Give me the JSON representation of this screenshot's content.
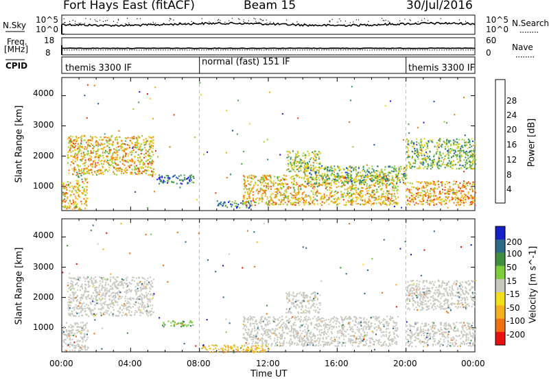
{
  "header": {
    "station": "Fort Hays East (fitACF)",
    "beam": "Beam 15",
    "date": "30/Jul/2016"
  },
  "strip": {
    "nsky_label": "N.Sky",
    "nsky_top": "10^5",
    "nsky_bottom": "10^0",
    "nsearch_label": "N.Search",
    "nsearch_top": "10^5",
    "nsearch_bottom": "10^0",
    "freq_label": "Freq.",
    "freq_unit": "[MHz]",
    "freq_top": "18",
    "freq_bottom": "8",
    "nave_label": "Nave",
    "nave_top": "60",
    "nave_bottom": "0",
    "cpid_label": "CPID",
    "cpid_segments": [
      {
        "label": "themis 3300 IF",
        "start_hour": 0,
        "end_hour": 8
      },
      {
        "label": "normal (fast) 151 IF",
        "start_hour": 8,
        "end_hour": 20
      },
      {
        "label": "themis 3300 IF",
        "start_hour": 20,
        "end_hour": 24
      }
    ]
  },
  "chart_data": [
    {
      "type": "heatmap",
      "panel": "power",
      "ylabel": "Slant Range [km]",
      "xlabel": "Time UT",
      "xlim": [
        0,
        24
      ],
      "ylim": [
        200,
        4600
      ],
      "x_ticks": [
        "00:00",
        "04:00",
        "08:00",
        "12:00",
        "16:00",
        "20:00",
        "00:00"
      ],
      "y_ticks": [
        "1000",
        "2000",
        "3000",
        "4000"
      ],
      "colorbar": {
        "label": "Power [dB]",
        "ticks": [
          "4",
          "8",
          "12",
          "16",
          "20",
          "24",
          "28"
        ],
        "range": [
          0,
          30
        ],
        "colors": [
          "#1a1aff",
          "#2050b0",
          "#2e8c6e",
          "#49a64a",
          "#98cc3a",
          "#e8d21a",
          "#f5a81a",
          "#f07a10",
          "#ee4010",
          "#e81010"
        ]
      },
      "clusters": [
        {
          "t": [
            0.0,
            1.5
          ],
          "r": [
            250,
            1200
          ],
          "power": 18
        },
        {
          "t": [
            0.8,
            1.5
          ],
          "r": [
            1200,
            1500
          ],
          "power": 14
        },
        {
          "t": [
            0.3,
            5.3
          ],
          "r": [
            1400,
            2700
          ],
          "power": 18
        },
        {
          "t": [
            5.5,
            7.7
          ],
          "r": [
            1100,
            1400
          ],
          "power": 6
        },
        {
          "t": [
            9.0,
            11.0
          ],
          "r": [
            300,
            550
          ],
          "power": 8
        },
        {
          "t": [
            10.5,
            19.5
          ],
          "r": [
            400,
            1400
          ],
          "power": 18
        },
        {
          "t": [
            13.0,
            15.0
          ],
          "r": [
            1500,
            2200
          ],
          "power": 14
        },
        {
          "t": [
            14.0,
            20.0
          ],
          "r": [
            1100,
            1700
          ],
          "power": 12
        },
        {
          "t": [
            20.0,
            24.0
          ],
          "r": [
            1600,
            2600
          ],
          "power": 12
        },
        {
          "t": [
            20.0,
            24.0
          ],
          "r": [
            400,
            1200
          ],
          "power": 20
        }
      ]
    },
    {
      "type": "heatmap",
      "panel": "velocity",
      "ylabel": "Slant Range [km]",
      "xlabel": "Time UT",
      "xlim": [
        0,
        24
      ],
      "ylim": [
        200,
        4600
      ],
      "x_ticks": [
        "00:00",
        "04:00",
        "08:00",
        "12:00",
        "16:00",
        "20:00",
        "00:00"
      ],
      "y_ticks": [
        "1000",
        "2000",
        "3000",
        "4000"
      ],
      "colorbar": {
        "label": "Velocity [m s^-1]",
        "ticks": [
          "200",
          "100",
          "50",
          "15",
          "-15",
          "-50",
          "-100",
          "-200"
        ],
        "range": [
          -250,
          250
        ],
        "colors": [
          "#1520c8",
          "#2d6a8a",
          "#3f8f3f",
          "#7ccd3a",
          "#c8c8c0",
          "#f2df1a",
          "#f5b020",
          "#f07010",
          "#e81010"
        ]
      },
      "clusters": [
        {
          "t": [
            0.0,
            1.5
          ],
          "r": [
            250,
            1200
          ],
          "velocity": 0
        },
        {
          "t": [
            0.3,
            5.3
          ],
          "r": [
            1400,
            2700
          ],
          "velocity": 0
        },
        {
          "t": [
            5.8,
            7.6
          ],
          "r": [
            1050,
            1250
          ],
          "velocity": 30
        },
        {
          "t": [
            8.0,
            12.0
          ],
          "r": [
            200,
            450
          ],
          "velocity": -40
        },
        {
          "t": [
            10.5,
            19.5
          ],
          "r": [
            400,
            1400
          ],
          "velocity": 0
        },
        {
          "t": [
            13.0,
            15.0
          ],
          "r": [
            1500,
            2200
          ],
          "velocity": 0
        },
        {
          "t": [
            20.0,
            24.0
          ],
          "r": [
            1600,
            2600
          ],
          "velocity": 0
        },
        {
          "t": [
            20.0,
            24.0
          ],
          "r": [
            400,
            1200
          ],
          "velocity": 0
        }
      ]
    }
  ]
}
